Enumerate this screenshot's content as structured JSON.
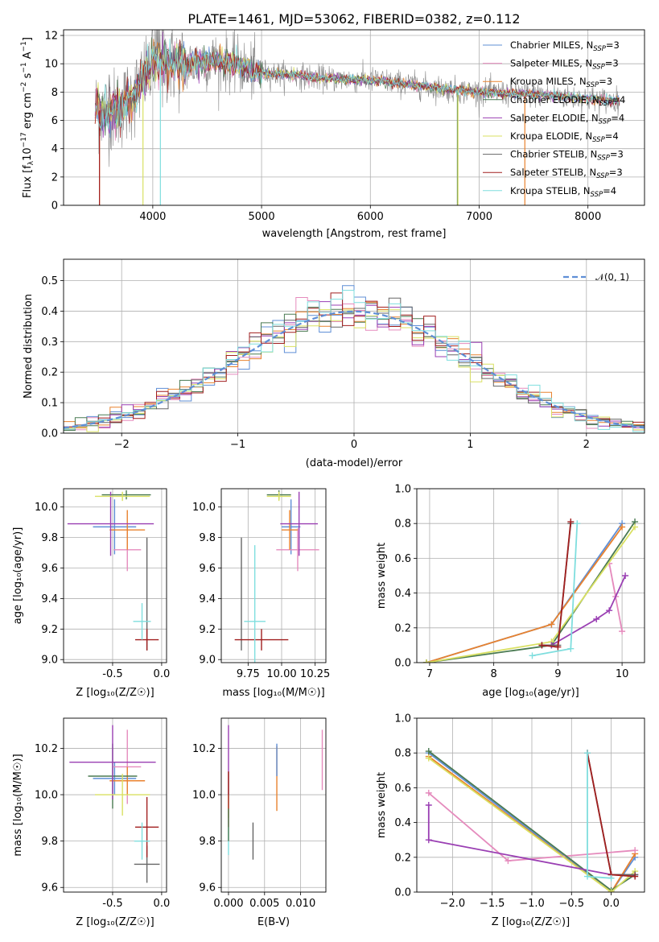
{
  "colors": {
    "c1": "#5f8fd6",
    "c2": "#e58bbd",
    "c3": "#e8822f",
    "c4": "#4a7a52",
    "c5": "#9a3fb3",
    "c6": "#d9e062",
    "c7": "#666666",
    "c8": "#a11f1f",
    "c9": "#7fdede",
    "normal": "#5f8fd6"
  },
  "chart_data": [
    {
      "type": "line",
      "title": "PLATE=1461, MJD=53062, FIBERID=0382, z=0.112",
      "xlabel": "wavelength [Angstrom, rest frame]",
      "ylabel": "Flux [f_λ10^-17 erg cm^-2 s^-1 A^-1]",
      "xlim": [
        3180,
        8520
      ],
      "ylim": [
        0,
        12.4
      ],
      "xticks": [
        4000,
        5000,
        6000,
        7000,
        8000
      ],
      "yticks": [
        0,
        2,
        4,
        6,
        8,
        10,
        12
      ],
      "legend_position": "upper-right",
      "spectrum_range": [
        3470,
        8290
      ],
      "series": [
        {
          "name": "Chabrier MILES, N_SSP=3",
          "color_key": "c1"
        },
        {
          "name": "Salpeter MILES, N_SSP=3",
          "color_key": "c2"
        },
        {
          "name": "Kroupa MILES, N_SSP=3",
          "color_key": "c3"
        },
        {
          "name": "Chabrier ELODIE, N_SSP=4",
          "color_key": "c4"
        },
        {
          "name": "Salpeter ELODIE, N_SSP=4",
          "color_key": "c5"
        },
        {
          "name": "Kroupa ELODIE, N_SSP=4",
          "color_key": "c6"
        },
        {
          "name": "Chabrier STELIB, N_SSP=3",
          "color_key": "c7"
        },
        {
          "name": "Salpeter STELIB, N_SSP=3",
          "color_key": "c8"
        },
        {
          "name": "Kroupa STELIB, N_SSP=4",
          "color_key": "c9"
        }
      ],
      "continuum": {
        "x": [
          3470,
          3550,
          3650,
          3750,
          3850,
          3950,
          4050,
          4150,
          4300,
          4500,
          4700,
          4900,
          5100,
          5300,
          5500,
          5800,
          6100,
          6400,
          6700,
          7000,
          7300,
          7600,
          7900,
          8200,
          8290
        ],
        "y": [
          6.8,
          6.6,
          6.7,
          7.2,
          8.0,
          9.5,
          10.4,
          10.0,
          9.9,
          10.2,
          10.1,
          9.5,
          9.3,
          9.2,
          9.0,
          8.9,
          8.8,
          8.5,
          8.2,
          8.0,
          7.9,
          7.8,
          7.6,
          7.4,
          7.4
        ]
      }
    },
    {
      "type": "histogram",
      "xlabel": "(data-model)/error",
      "ylabel": "Normed distribution",
      "xlim": [
        -2.5,
        2.5
      ],
      "ylim": [
        0,
        0.57
      ],
      "xticks": [
        -2,
        -1,
        0,
        1,
        2
      ],
      "yticks": [
        0.0,
        0.1,
        0.2,
        0.3,
        0.4,
        0.5
      ],
      "legend": [
        {
          "name": "𝒩(0, 1)",
          "style": "dashed"
        }
      ],
      "bin_width": 0.1
    },
    {
      "type": "scatter",
      "xlabel": "Z [log₁₀(Z/Z☉)]",
      "ylabel": "age  [log₁₀(age/yr)]",
      "xlim": [
        -1.0,
        0.05
      ],
      "ylim": [
        8.98,
        10.12
      ],
      "xticks": [
        -0.5,
        0.0
      ],
      "yticks": [
        9.0,
        9.2,
        9.4,
        9.6,
        9.8,
        10.0
      ],
      "points": [
        {
          "x": -0.48,
          "y": 9.87,
          "xerr": 0.22,
          "yerr": 0.18,
          "color_key": "c1"
        },
        {
          "x": -0.35,
          "y": 9.72,
          "xerr": 0.14,
          "yerr": 0.14,
          "color_key": "c2"
        },
        {
          "x": -0.35,
          "y": 9.85,
          "xerr": 0.18,
          "yerr": 0.13,
          "color_key": "c3"
        },
        {
          "x": -0.36,
          "y": 10.08,
          "xerr": 0.25,
          "yerr": 0.03,
          "color_key": "c4"
        },
        {
          "x": -0.52,
          "y": 9.89,
          "xerr": 0.44,
          "yerr": 0.21,
          "color_key": "c5"
        },
        {
          "x": -0.4,
          "y": 10.07,
          "xerr": 0.28,
          "yerr": 0.03,
          "color_key": "c6"
        },
        {
          "x": -0.15,
          "y": 9.43,
          "xerr": 0.0,
          "yerr": 0.37,
          "color_key": "c7"
        },
        {
          "x": -0.15,
          "y": 9.13,
          "xerr": 0.12,
          "yerr": 0.07,
          "color_key": "c8"
        },
        {
          "x": -0.2,
          "y": 9.25,
          "xerr": 0.09,
          "yerr": 0.12,
          "color_key": "c9"
        }
      ]
    },
    {
      "type": "scatter",
      "xlabel": "mass [log₁₀(M/M☉)]",
      "ylabel": "",
      "xlim": [
        9.55,
        10.33
      ],
      "ylim": [
        8.98,
        10.12
      ],
      "xticks": [
        9.75,
        10.0,
        10.25
      ],
      "yticks": [
        9.0,
        9.2,
        9.4,
        9.6,
        9.8,
        10.0
      ],
      "points": [
        {
          "x": 10.07,
          "y": 9.87,
          "xerr": 0.07,
          "yerr": 0.18,
          "color_key": "c1"
        },
        {
          "x": 10.12,
          "y": 9.72,
          "xerr": 0.16,
          "yerr": 0.14,
          "color_key": "c2"
        },
        {
          "x": 10.06,
          "y": 9.85,
          "xerr": 0.06,
          "yerr": 0.13,
          "color_key": "c3"
        },
        {
          "x": 9.98,
          "y": 10.08,
          "xerr": 0.09,
          "yerr": 0.03,
          "color_key": "c4"
        },
        {
          "x": 10.13,
          "y": 9.89,
          "xerr": 0.14,
          "yerr": 0.21,
          "color_key": "c5"
        },
        {
          "x": 9.98,
          "y": 10.07,
          "xerr": 0.09,
          "yerr": 0.03,
          "color_key": "c6"
        },
        {
          "x": 9.7,
          "y": 9.43,
          "xerr": 0.0,
          "yerr": 0.37,
          "color_key": "c7"
        },
        {
          "x": 9.85,
          "y": 9.13,
          "xerr": 0.2,
          "yerr": 0.07,
          "color_key": "c8"
        },
        {
          "x": 9.8,
          "y": 9.25,
          "xerr": 0.08,
          "yerr": 0.5,
          "color_key": "c9"
        }
      ]
    },
    {
      "type": "line",
      "xlabel": "age  [log₁₀(age/yr)]",
      "ylabel": "mass weight",
      "xlim": [
        6.8,
        10.35
      ],
      "ylim": [
        0,
        1.0
      ],
      "xticks": [
        7,
        8,
        9,
        10
      ],
      "yticks": [
        0.0,
        0.2,
        0.4,
        0.6,
        0.8,
        1.0
      ],
      "series": [
        {
          "color_key": "c1",
          "x": [
            6.95,
            8.9,
            10.0
          ],
          "y": [
            0.0,
            0.22,
            0.8
          ]
        },
        {
          "color_key": "c3",
          "x": [
            6.95,
            8.9,
            10.0
          ],
          "y": [
            0.0,
            0.22,
            0.78
          ]
        },
        {
          "color_key": "c2",
          "x": [
            9.9,
            9.8,
            10.0
          ],
          "y": [
            0.38,
            0.57,
            0.18
          ]
        },
        {
          "color_key": "c4",
          "x": [
            6.95,
            8.9,
            10.2
          ],
          "y": [
            0.0,
            0.1,
            0.81
          ]
        },
        {
          "color_key": "c6",
          "x": [
            6.95,
            8.9,
            10.2
          ],
          "y": [
            0.0,
            0.12,
            0.78
          ]
        },
        {
          "color_key": "c5",
          "x": [
            8.9,
            9.6,
            9.8,
            10.05
          ],
          "y": [
            0.1,
            0.25,
            0.3,
            0.5
          ]
        },
        {
          "color_key": "c7",
          "x": [
            8.75,
            9.0,
            9.2
          ],
          "y": [
            0.1,
            0.1,
            0.8
          ]
        },
        {
          "color_key": "c8",
          "x": [
            8.75,
            9.0,
            9.2
          ],
          "y": [
            0.1,
            0.09,
            0.81
          ]
        },
        {
          "color_key": "c9",
          "x": [
            8.6,
            9.2,
            9.3
          ],
          "y": [
            0.04,
            0.08,
            0.8
          ]
        }
      ]
    },
    {
      "type": "scatter",
      "xlabel": "Z [log₁₀(Z/Z☉)]",
      "ylabel": "mass [log₁₀(M/M☉)]",
      "xlim": [
        -1.0,
        0.05
      ],
      "ylim": [
        9.58,
        10.33
      ],
      "xticks": [
        -0.5,
        0.0
      ],
      "yticks": [
        9.6,
        9.8,
        10.0,
        10.2
      ],
      "points": [
        {
          "x": -0.48,
          "y": 10.07,
          "xerr": 0.22,
          "yerr": 0.07,
          "color_key": "c1"
        },
        {
          "x": -0.35,
          "y": 10.12,
          "xerr": 0.14,
          "yerr": 0.16,
          "color_key": "c2"
        },
        {
          "x": -0.35,
          "y": 10.06,
          "xerr": 0.18,
          "yerr": 0.06,
          "color_key": "c3"
        },
        {
          "x": -0.5,
          "y": 10.08,
          "xerr": 0.25,
          "yerr": 0.14,
          "color_key": "c4"
        },
        {
          "x": -0.5,
          "y": 10.14,
          "xerr": 0.44,
          "yerr": 0.16,
          "color_key": "c5"
        },
        {
          "x": -0.4,
          "y": 10.0,
          "xerr": 0.28,
          "yerr": 0.09,
          "color_key": "c6"
        },
        {
          "x": -0.15,
          "y": 9.7,
          "xerr": 0.13,
          "yerr": 0.08,
          "color_key": "c7"
        },
        {
          "x": -0.15,
          "y": 9.86,
          "xerr": 0.12,
          "yerr": 0.13,
          "color_key": "c8"
        },
        {
          "x": -0.2,
          "y": 9.8,
          "xerr": 0.08,
          "yerr": 0.08,
          "color_key": "c9"
        }
      ]
    },
    {
      "type": "scatter",
      "xlabel": "E(B-V)",
      "ylabel": "",
      "xlim": [
        -0.001,
        0.0135
      ],
      "ylim": [
        9.58,
        10.33
      ],
      "xticks": [
        0.0,
        0.005,
        0.01
      ],
      "yticks": [
        9.6,
        9.8,
        10.0,
        10.2
      ],
      "points": [
        {
          "x": 0.0,
          "y": 10.0,
          "yerr": 0.1,
          "color_key": "c6"
        },
        {
          "x": 0.0,
          "y": 10.15,
          "yerr": 0.15,
          "color_key": "c5"
        },
        {
          "x": 0.0,
          "y": 9.8,
          "yerr": 0.06,
          "color_key": "c9"
        },
        {
          "x": 0.0,
          "y": 9.98,
          "yerr": 0.12,
          "color_key": "c8"
        },
        {
          "x": 0.0,
          "y": 9.87,
          "yerr": 0.07,
          "color_key": "c4"
        },
        {
          "x": 0.0034,
          "y": 9.8,
          "yerr": 0.08,
          "color_key": "c7"
        },
        {
          "x": 0.0067,
          "y": 10.07,
          "yerr": 0.14,
          "color_key": "c3"
        },
        {
          "x": 0.0067,
          "y": 10.15,
          "yerr": 0.07,
          "color_key": "c1"
        },
        {
          "x": 0.013,
          "y": 10.15,
          "yerr": 0.13,
          "color_key": "c2"
        }
      ]
    },
    {
      "type": "line",
      "xlabel": "Z [log₁₀(Z/Z☉)]",
      "ylabel": "mass weight",
      "xlim": [
        -2.45,
        0.42
      ],
      "ylim": [
        0,
        1.0
      ],
      "xticks": [
        -2.0,
        -1.5,
        -1.0,
        -0.5,
        0.0
      ],
      "yticks": [
        0.0,
        0.2,
        0.4,
        0.6,
        0.8,
        1.0
      ],
      "series": [
        {
          "color_key": "c1",
          "x": [
            -2.3,
            0.0,
            0.3
          ],
          "y": [
            0.8,
            0.0,
            0.2
          ]
        },
        {
          "color_key": "c3",
          "x": [
            -2.3,
            0.0,
            0.3
          ],
          "y": [
            0.78,
            0.0,
            0.22
          ]
        },
        {
          "color_key": "c2",
          "x": [
            -2.3,
            -1.3,
            0.3
          ],
          "y": [
            0.57,
            0.18,
            0.24
          ]
        },
        {
          "color_key": "c4",
          "x": [
            -2.3,
            0.0,
            0.3
          ],
          "y": [
            0.81,
            0.01,
            0.1
          ]
        },
        {
          "color_key": "c6",
          "x": [
            -2.3,
            0.0,
            0.3
          ],
          "y": [
            0.77,
            0.0,
            0.12
          ]
        },
        {
          "color_key": "c5",
          "x": [
            -2.3,
            -2.3,
            0.0,
            0.3
          ],
          "y": [
            0.5,
            0.3,
            0.1,
            0.1
          ]
        },
        {
          "color_key": "c7",
          "x": [
            -0.3,
            0.0,
            0.3
          ],
          "y": [
            0.8,
            0.1,
            0.1
          ]
        },
        {
          "color_key": "c8",
          "x": [
            -0.3,
            0.0,
            0.3
          ],
          "y": [
            0.8,
            0.1,
            0.09
          ]
        },
        {
          "color_key": "c9",
          "x": [
            -0.3,
            -0.3,
            0.0
          ],
          "y": [
            0.8,
            0.09,
            0.08
          ]
        }
      ]
    }
  ]
}
